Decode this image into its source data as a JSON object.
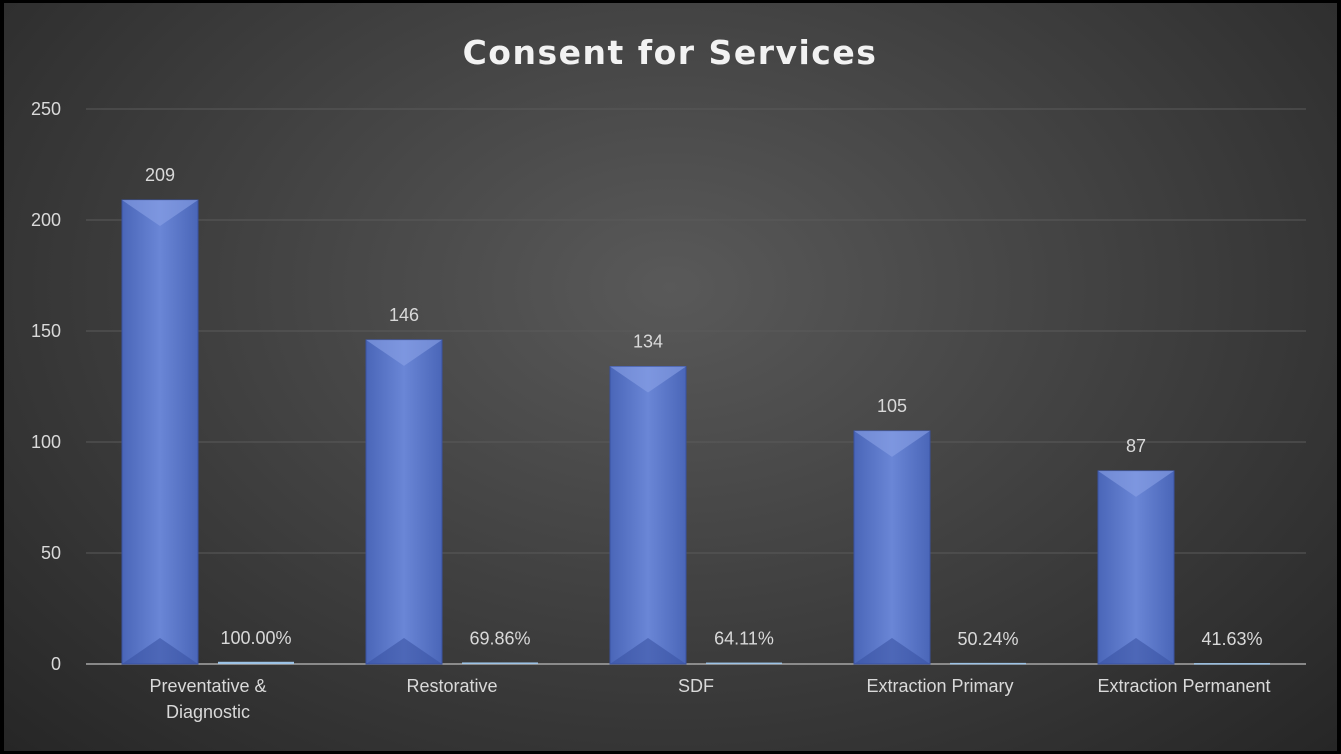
{
  "chart_data": {
    "type": "bar",
    "title": "Consent for Services",
    "xlabel": "",
    "ylabel": "",
    "categories": [
      "Preventative & Diagnostic",
      "Restorative",
      "SDF",
      "Extraction Primary",
      "Extraction Permanent"
    ],
    "category_label_lines": [
      [
        "Preventative &",
        "Diagnostic"
      ],
      [
        "Restorative"
      ],
      [
        "SDF"
      ],
      [
        "Extraction Primary"
      ],
      [
        "Extraction Permanent"
      ]
    ],
    "series": [
      {
        "values": [
          209,
          146,
          134,
          105,
          87
        ],
        "data_labels": [
          "209",
          "146",
          "134",
          "105",
          "87"
        ],
        "color": "#5b78cc"
      },
      {
        "values": [
          1.0,
          0.6986,
          0.6411,
          0.5024,
          0.4163
        ],
        "data_labels": [
          "100.00%",
          "69.86%",
          "64.11%",
          "50.24%",
          "41.63%"
        ],
        "color": "#9dc3e6"
      }
    ],
    "ylim": [
      0,
      250
    ],
    "yticks": [
      0,
      50,
      100,
      150,
      200,
      250
    ],
    "grid": true,
    "legend": "none"
  }
}
